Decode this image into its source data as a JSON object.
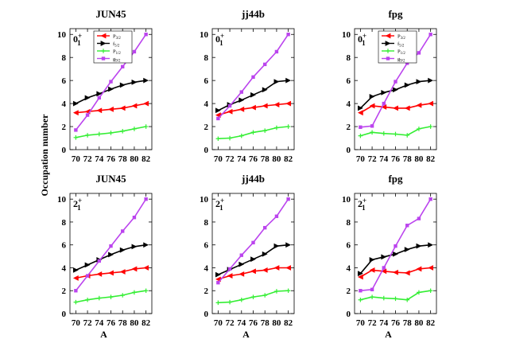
{
  "figure": {
    "ylabel": "Occupation number",
    "xlabel": "A",
    "colors": {
      "p3/2": "#ff0000",
      "f5/2": "#000000",
      "p1/2": "#33ee33",
      "g9/2": "#bb44ee"
    },
    "legend_entries": [
      {
        "key": "p3/2",
        "letter": "P",
        "sub": "3/2",
        "marker": "triangle-left"
      },
      {
        "key": "f5/2",
        "letter": "f",
        "sub": "5/2",
        "marker": "triangle-right"
      },
      {
        "key": "p1/2",
        "letter": "P",
        "sub": "1/2",
        "marker": "plus"
      },
      {
        "key": "g9/2",
        "letter": "g",
        "sub": "9/2",
        "marker": "square"
      }
    ]
  },
  "chart_data": [
    {
      "type": "line",
      "title": "JUN45",
      "state": "0",
      "state_sup": "+",
      "state_sub": "1",
      "xlabel": "",
      "ylabel": "Occupation number",
      "xlim": [
        69,
        83
      ],
      "ylim": [
        0,
        10.5
      ],
      "x": [
        70,
        72,
        74,
        76,
        78,
        80,
        82
      ],
      "legend": "top-left",
      "series": [
        {
          "name": "p3/2",
          "values": [
            3.2,
            3.3,
            3.4,
            3.5,
            3.6,
            3.8,
            4.0
          ]
        },
        {
          "name": "f5/2",
          "values": [
            4.0,
            4.5,
            4.85,
            5.25,
            5.6,
            5.85,
            6.0
          ]
        },
        {
          "name": "p1/2",
          "values": [
            1.05,
            1.25,
            1.35,
            1.45,
            1.6,
            1.8,
            2.0
          ]
        },
        {
          "name": "g9/2",
          "values": [
            1.7,
            3.0,
            4.5,
            5.9,
            7.2,
            8.5,
            10.0
          ]
        }
      ]
    },
    {
      "type": "line",
      "title": "jj44b",
      "state": "0",
      "state_sup": "+",
      "state_sub": "1",
      "xlabel": "",
      "ylabel": "",
      "xlim": [
        69,
        83
      ],
      "ylim": [
        0,
        10.5
      ],
      "x": [
        70,
        72,
        74,
        76,
        78,
        80,
        82
      ],
      "series": [
        {
          "name": "p3/2",
          "values": [
            3.0,
            3.3,
            3.5,
            3.65,
            3.8,
            3.9,
            4.0
          ]
        },
        {
          "name": "f5/2",
          "values": [
            3.4,
            3.9,
            4.3,
            4.75,
            5.2,
            5.9,
            6.0
          ]
        },
        {
          "name": "p1/2",
          "values": [
            0.95,
            1.0,
            1.2,
            1.5,
            1.65,
            1.9,
            2.0
          ]
        },
        {
          "name": "g9/2",
          "values": [
            2.7,
            3.8,
            5.0,
            6.3,
            7.4,
            8.5,
            10.0
          ]
        }
      ]
    },
    {
      "type": "line",
      "title": "fpg",
      "state": "0",
      "state_sup": "+",
      "state_sub": "1",
      "xlabel": "",
      "ylabel": "",
      "xlim": [
        69,
        83
      ],
      "ylim": [
        0,
        10.5
      ],
      "x": [
        70,
        72,
        74,
        76,
        78,
        80,
        82
      ],
      "legend": "top-left",
      "series": [
        {
          "name": "p3/2",
          "values": [
            3.2,
            3.8,
            3.7,
            3.6,
            3.6,
            3.85,
            4.0
          ]
        },
        {
          "name": "f5/2",
          "values": [
            3.6,
            4.6,
            4.95,
            5.2,
            5.6,
            5.9,
            6.0
          ]
        },
        {
          "name": "p1/2",
          "values": [
            1.2,
            1.5,
            1.4,
            1.35,
            1.25,
            1.8,
            2.0
          ]
        },
        {
          "name": "g9/2",
          "values": [
            1.95,
            2.05,
            4.0,
            5.9,
            7.5,
            8.4,
            10.0
          ]
        }
      ]
    },
    {
      "type": "line",
      "title": "JUN45",
      "state": "2",
      "state_sup": "+",
      "state_sub": "1",
      "xlabel": "A",
      "ylabel": "Occupation number",
      "xlim": [
        69,
        83
      ],
      "ylim": [
        0,
        10.5
      ],
      "x": [
        70,
        72,
        74,
        76,
        78,
        80,
        82
      ],
      "series": [
        {
          "name": "p3/2",
          "values": [
            3.1,
            3.3,
            3.45,
            3.55,
            3.65,
            3.9,
            4.0
          ]
        },
        {
          "name": "f5/2",
          "values": [
            3.8,
            4.25,
            4.7,
            5.15,
            5.55,
            5.85,
            6.0
          ]
        },
        {
          "name": "p1/2",
          "values": [
            1.0,
            1.2,
            1.35,
            1.45,
            1.6,
            1.85,
            2.0
          ]
        },
        {
          "name": "g9/2",
          "values": [
            2.0,
            3.3,
            4.6,
            5.9,
            7.2,
            8.4,
            10.0
          ]
        }
      ]
    },
    {
      "type": "line",
      "title": "jj44b",
      "state": "2",
      "state_sup": "+",
      "state_sub": "1",
      "xlabel": "A",
      "ylabel": "",
      "xlim": [
        69,
        83
      ],
      "ylim": [
        0,
        10.5
      ],
      "x": [
        70,
        72,
        74,
        76,
        78,
        80,
        82
      ],
      "series": [
        {
          "name": "p3/2",
          "values": [
            3.0,
            3.3,
            3.45,
            3.7,
            3.8,
            4.0,
            4.0
          ]
        },
        {
          "name": "f5/2",
          "values": [
            3.4,
            3.85,
            4.3,
            4.75,
            5.2,
            5.9,
            6.0
          ]
        },
        {
          "name": "p1/2",
          "values": [
            0.95,
            1.0,
            1.2,
            1.45,
            1.6,
            1.95,
            2.0
          ]
        },
        {
          "name": "g9/2",
          "values": [
            2.7,
            3.9,
            5.1,
            6.2,
            7.5,
            8.5,
            10.0
          ]
        }
      ]
    },
    {
      "type": "line",
      "title": "fpg",
      "state": "2",
      "state_sup": "+",
      "state_sub": "1",
      "xlabel": "A",
      "ylabel": "",
      "xlim": [
        69,
        83
      ],
      "ylim": [
        0,
        10.5
      ],
      "x": [
        70,
        72,
        74,
        76,
        78,
        80,
        82
      ],
      "series": [
        {
          "name": "p3/2",
          "values": [
            3.2,
            3.8,
            3.7,
            3.6,
            3.55,
            3.9,
            4.0
          ]
        },
        {
          "name": "f5/2",
          "values": [
            3.5,
            4.7,
            4.95,
            5.2,
            5.6,
            5.9,
            6.0
          ]
        },
        {
          "name": "p1/2",
          "values": [
            1.2,
            1.45,
            1.35,
            1.3,
            1.2,
            1.85,
            2.0
          ]
        },
        {
          "name": "g9/2",
          "values": [
            2.0,
            2.1,
            4.0,
            5.9,
            7.7,
            8.3,
            10.0
          ]
        }
      ]
    }
  ]
}
